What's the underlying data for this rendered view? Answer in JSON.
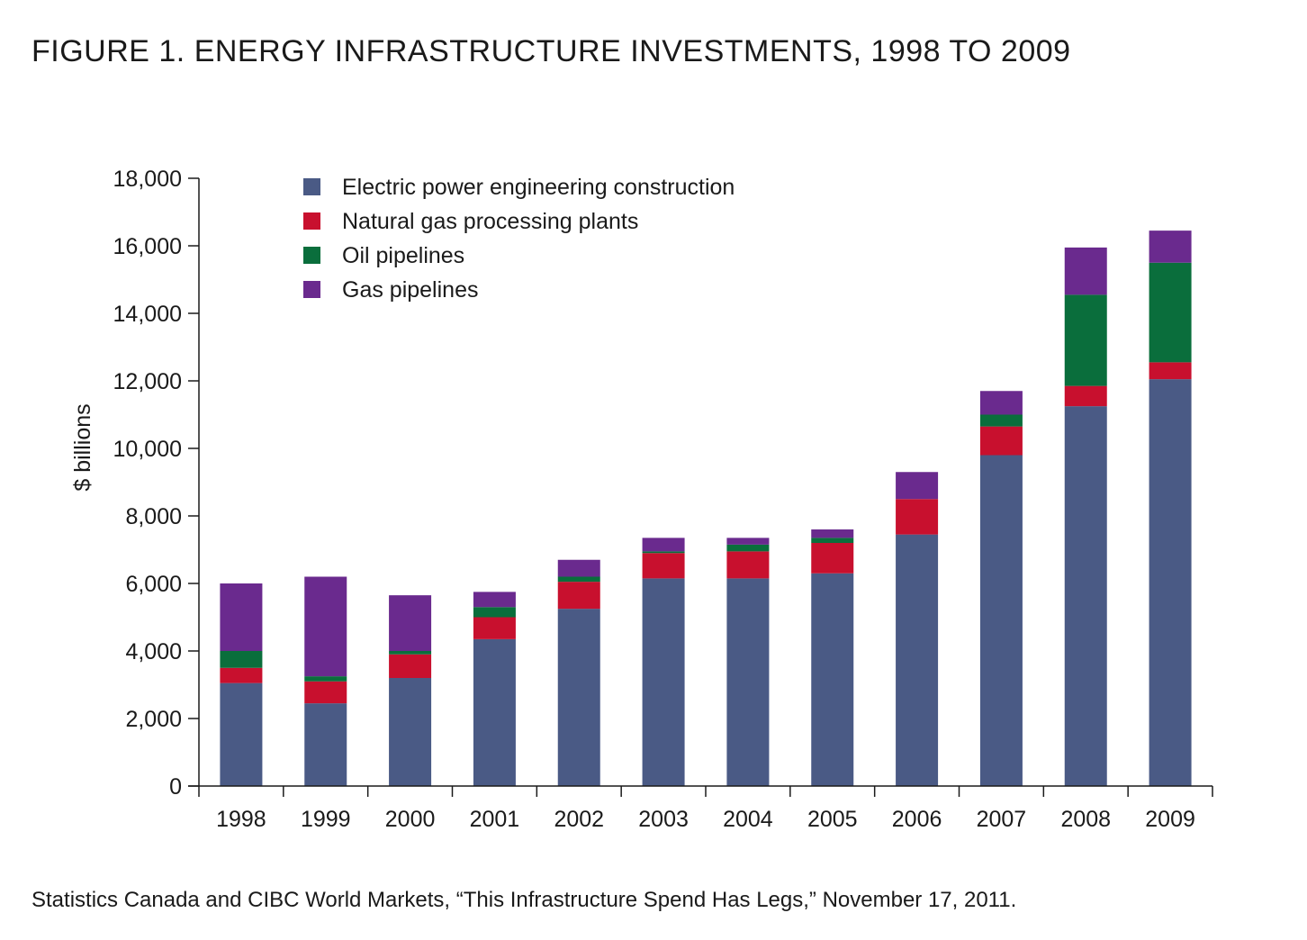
{
  "figure": {
    "title": "FIGURE 1. ENERGY INFRASTRUCTURE INVESTMENTS, 1998 TO 2009",
    "source": "Statistics Canada and CIBC World Markets, “This Infrastructure Spend Has Legs,” November 17, 2011."
  },
  "chart_data": {
    "type": "bar",
    "stacked": true,
    "title": "",
    "xlabel": "",
    "ylabel": "$ billions",
    "ylim": [
      0,
      18000
    ],
    "yticks": [
      0,
      2000,
      4000,
      6000,
      8000,
      10000,
      12000,
      14000,
      16000,
      18000
    ],
    "ytick_labels": [
      "0",
      "2,000",
      "4,000",
      "6,000",
      "8,000",
      "10,000",
      "12,000",
      "14,000",
      "16,000",
      "18,000"
    ],
    "grid": false,
    "legend_position": "top-left",
    "categories": [
      "1998",
      "1999",
      "2000",
      "2001",
      "2002",
      "2003",
      "2004",
      "2005",
      "2006",
      "2007",
      "2008",
      "2009"
    ],
    "series": [
      {
        "name": "Electric power engineering construction",
        "color": "#4a5a85",
        "values": [
          3050,
          2450,
          3200,
          4350,
          5250,
          6150,
          6150,
          6300,
          7450,
          9800,
          11250,
          12050
        ]
      },
      {
        "name": "Natural gas processing plants",
        "color": "#c8102e",
        "values": [
          450,
          650,
          700,
          650,
          800,
          750,
          800,
          900,
          1050,
          850,
          600,
          500
        ]
      },
      {
        "name": "Oil pipelines",
        "color": "#0a6e3c",
        "values": [
          500,
          150,
          100,
          300,
          150,
          50,
          200,
          150,
          0,
          350,
          2700,
          2950
        ]
      },
      {
        "name": "Gas pipelines",
        "color": "#6a2a8e",
        "values": [
          2000,
          2950,
          1650,
          450,
          500,
          400,
          200,
          250,
          800,
          700,
          1400,
          950
        ]
      }
    ]
  }
}
